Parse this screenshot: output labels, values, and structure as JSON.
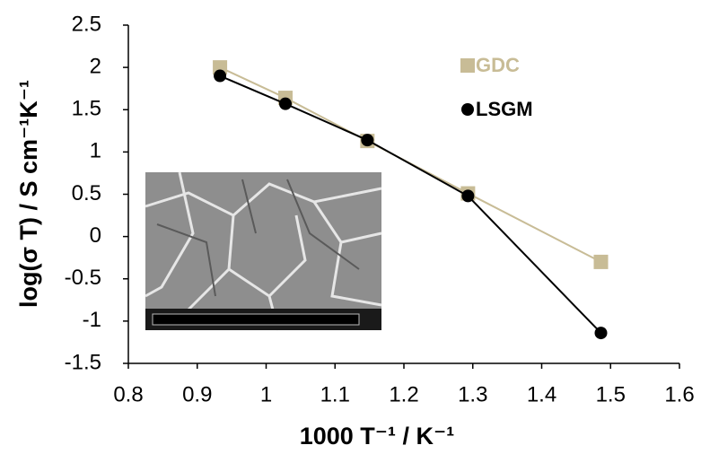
{
  "chart_data": {
    "type": "line",
    "x_label": "1000 T⁻¹ / K⁻¹",
    "y_label": "log(σ T) / S cm⁻¹K⁻¹",
    "xlim": [
      0.8,
      1.6
    ],
    "xticks": [
      0.8,
      0.9,
      1,
      1.1,
      1.2,
      1.3,
      1.4,
      1.5,
      1.6
    ],
    "ylim": [
      -1.5,
      2.5
    ],
    "yticks": [
      2.5,
      2,
      1.5,
      1,
      0.5,
      0,
      -0.5,
      -1,
      -1.5
    ],
    "grid": false,
    "series": [
      {
        "name": "GDC",
        "color": "#c8bc96",
        "marker": "square",
        "x": [
          0.933,
          1.028,
          1.147,
          1.293,
          1.486
        ],
        "values": [
          2.0,
          1.64,
          1.13,
          0.51,
          -0.3
        ]
      },
      {
        "name": "LSGM",
        "color": "#000000",
        "marker": "circle",
        "x": [
          0.933,
          1.028,
          1.147,
          1.293,
          1.486
        ],
        "values": [
          1.9,
          1.57,
          1.14,
          0.48,
          -1.14
        ]
      }
    ]
  }
}
